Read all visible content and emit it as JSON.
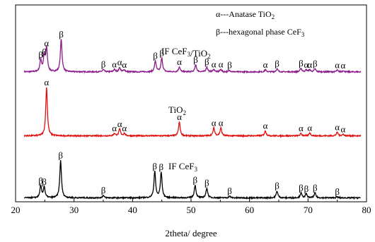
{
  "chart_data": {
    "type": "line",
    "xlabel": "2theta/ degree",
    "ylabel": "",
    "xlim": [
      20,
      80
    ],
    "xticks": [
      20,
      30,
      40,
      50,
      60,
      70,
      80
    ],
    "legend": {
      "placement": "top-right",
      "entries": [
        {
          "symbol": "α",
          "text": "---Anatase TiO",
          "sub": "2"
        },
        {
          "symbol": "β",
          "text": "---hexagonal phase CeF",
          "sub": "3"
        }
      ]
    },
    "series": [
      {
        "name": "IF CeF3/TiO2",
        "label_main": "IF CeF",
        "label_sub1": "3",
        "label_mid": "/TiO",
        "label_sub2": "2",
        "color": "#8B1A8B",
        "offset": 0.66,
        "peaks": [
          {
            "x": 24.3,
            "h": 0.06,
            "label": "β"
          },
          {
            "x": 24.9,
            "h": 0.075,
            "label": "β"
          },
          {
            "x": 25.3,
            "h": 0.12,
            "label": "α"
          },
          {
            "x": 27.8,
            "h": 0.165,
            "label": "β"
          },
          {
            "x": 35.0,
            "h": 0.012,
            "label": "β"
          },
          {
            "x": 36.9,
            "h": 0.012,
            "label": "α"
          },
          {
            "x": 37.8,
            "h": 0.022,
            "label": "α"
          },
          {
            "x": 38.6,
            "h": 0.01,
            "label": "α"
          },
          {
            "x": 43.9,
            "h": 0.055,
            "label": "β"
          },
          {
            "x": 45.0,
            "h": 0.07,
            "label": "β"
          },
          {
            "x": 48.0,
            "h": 0.025,
            "label": "α"
          },
          {
            "x": 50.8,
            "h": 0.035,
            "label": "β"
          },
          {
            "x": 52.7,
            "h": 0.025,
            "label": "β"
          },
          {
            "x": 53.9,
            "h": 0.012,
            "label": "α"
          },
          {
            "x": 55.1,
            "h": 0.012,
            "label": "α"
          },
          {
            "x": 56.6,
            "h": 0.008,
            "label": "β"
          },
          {
            "x": 62.7,
            "h": 0.01,
            "label": "α"
          },
          {
            "x": 64.7,
            "h": 0.015,
            "label": "β"
          },
          {
            "x": 68.8,
            "h": 0.018,
            "label": "β"
          },
          {
            "x": 69.7,
            "h": 0.01,
            "label": "α"
          },
          {
            "x": 70.3,
            "h": 0.01,
            "label": "α"
          },
          {
            "x": 71.2,
            "h": 0.015,
            "label": "β"
          },
          {
            "x": 75.0,
            "h": 0.008,
            "label": "α"
          },
          {
            "x": 76.0,
            "h": 0.006,
            "label": "α"
          }
        ]
      },
      {
        "name": "TiO2",
        "label_main": "TiO",
        "label_sub1": "2",
        "color": "#E01010",
        "offset": 0.335,
        "peaks": [
          {
            "x": 25.3,
            "h": 0.245,
            "label": "α"
          },
          {
            "x": 36.9,
            "h": 0.012,
            "label": "α"
          },
          {
            "x": 37.8,
            "h": 0.035,
            "label": "α"
          },
          {
            "x": 38.6,
            "h": 0.012,
            "label": "α"
          },
          {
            "x": 48.0,
            "h": 0.07,
            "label": "α"
          },
          {
            "x": 53.9,
            "h": 0.04,
            "label": "α"
          },
          {
            "x": 55.1,
            "h": 0.04,
            "label": "α"
          },
          {
            "x": 62.7,
            "h": 0.025,
            "label": "α"
          },
          {
            "x": 68.8,
            "h": 0.012,
            "label": "α"
          },
          {
            "x": 70.3,
            "h": 0.015,
            "label": "α"
          },
          {
            "x": 75.0,
            "h": 0.018,
            "label": "α"
          },
          {
            "x": 76.0,
            "h": 0.008,
            "label": "α"
          }
        ]
      },
      {
        "name": "IF CeF3",
        "label_main": "IF CeF",
        "label_sub1": "3",
        "color": "#000000",
        "offset": 0.02,
        "peaks": [
          {
            "x": 24.3,
            "h": 0.06,
            "label": "β"
          },
          {
            "x": 24.9,
            "h": 0.055,
            "label": "β"
          },
          {
            "x": 27.7,
            "h": 0.19,
            "label": "β"
          },
          {
            "x": 35.0,
            "h": 0.012,
            "label": "β"
          },
          {
            "x": 43.8,
            "h": 0.135,
            "label": "β"
          },
          {
            "x": 44.9,
            "h": 0.13,
            "label": "β"
          },
          {
            "x": 50.7,
            "h": 0.065,
            "label": "β"
          },
          {
            "x": 52.7,
            "h": 0.05,
            "label": "β"
          },
          {
            "x": 56.6,
            "h": 0.008,
            "label": "β"
          },
          {
            "x": 64.7,
            "h": 0.035,
            "label": "β"
          },
          {
            "x": 68.8,
            "h": 0.025,
            "label": "β"
          },
          {
            "x": 69.7,
            "h": 0.02,
            "label": "β"
          },
          {
            "x": 71.2,
            "h": 0.025,
            "label": "β"
          },
          {
            "x": 75.0,
            "h": 0.005,
            "label": "β"
          }
        ]
      }
    ]
  }
}
